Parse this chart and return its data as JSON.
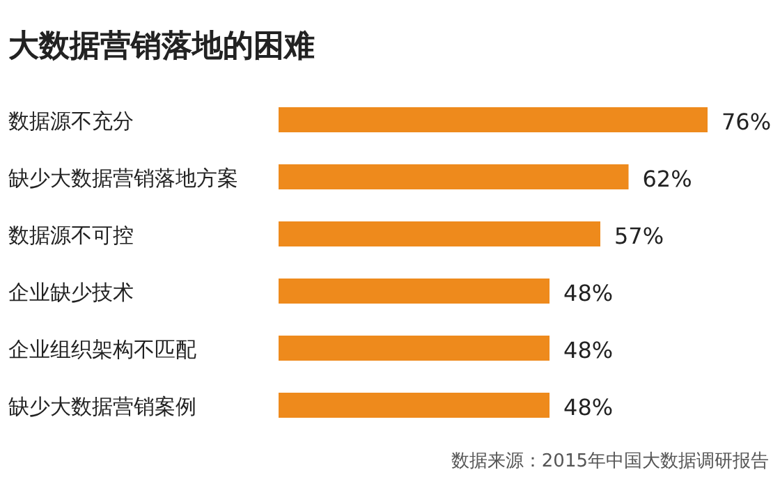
{
  "chart_data": {
    "type": "bar",
    "orientation": "horizontal",
    "title": "大数据营销落地的困难",
    "categories": [
      "数据源不充分",
      "缺少大数据营销落地方案",
      "数据源不可控",
      "企业缺少技术",
      "企业组织架构不匹配",
      "缺少大数据营销案例"
    ],
    "values": [
      76,
      62,
      57,
      48,
      48,
      48
    ],
    "value_labels": [
      "76%",
      "62%",
      "57%",
      "48%",
      "48%",
      "48%"
    ],
    "color": "#ee8a1c",
    "annotations": [
      "数据来源：2015年中国大数据调研报告"
    ]
  }
}
